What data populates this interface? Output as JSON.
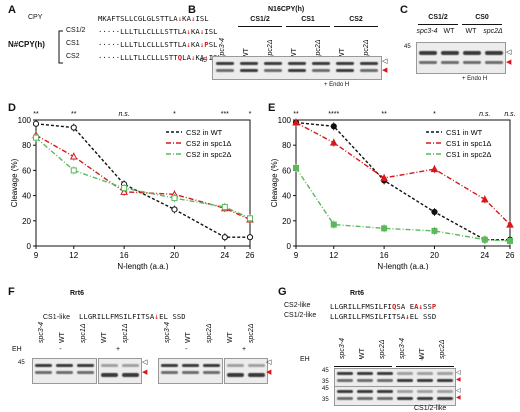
{
  "panel_a": {
    "label": "A",
    "group_label": "N#CPY(h)",
    "rows": [
      {
        "name": "CPY",
        "prefix": "MKAFTSLLCGLGLSTTLA",
        "site": "KA",
        "after": "ISL",
        "mut_pos": -1
      },
      {
        "name": "CS1/2",
        "prefix": "·····LLLTLLCLLLSTTLA",
        "site": "KA",
        "after": "ISL",
        "mut_pos": -1
      },
      {
        "name": "CS1",
        "prefix": "·····LLLTLLCLLLSTTLA",
        "site": "KA",
        "after": "PSL",
        "mut_pos": 0
      },
      {
        "name": "CS2",
        "prefix": "·····LLLTLLCLLLSTTQLA",
        "site": "KA",
        "after": "ISL",
        "mut_pos": 1
      }
    ]
  },
  "panel_b": {
    "label": "B",
    "title": "N16CPY(h)",
    "groups": [
      "CS1/2",
      "CS1",
      "CS2"
    ],
    "lanes": [
      "spc3-4",
      "WT",
      "spc2Δ",
      "WT",
      "spc2Δ",
      "WT",
      "spc2Δ"
    ],
    "marker": "45",
    "treatment": "+ Endo H"
  },
  "panel_c": {
    "label": "C",
    "groups": [
      "CS1/2",
      "CS0"
    ],
    "lanes": [
      "spc3-4",
      "WT",
      "WT",
      "spc2Δ"
    ],
    "marker": "45",
    "treatment": "+ Endo H"
  },
  "panel_d": {
    "label": "D",
    "significance": [
      "**",
      "**",
      "n.s.",
      "*",
      "***",
      "*"
    ],
    "chart_data": {
      "type": "line",
      "xlabel": "N-length (a.a.)",
      "ylabel": "Cleavage (%)",
      "x_ticks": [
        9,
        12,
        16,
        20,
        24,
        26
      ],
      "ylim": [
        0,
        100
      ],
      "y_ticks": [
        0,
        20,
        40,
        60,
        80,
        100
      ],
      "series": [
        {
          "name": "CS2 in WT",
          "color": "#111111",
          "x": [
            9,
            12,
            16,
            20,
            24,
            26
          ],
          "y": [
            97,
            94,
            49,
            29,
            7,
            7
          ]
        },
        {
          "name": "CS2 in spc1Δ",
          "color": "#d4191c",
          "x": [
            9,
            12,
            16,
            20,
            24,
            26
          ],
          "y": [
            88,
            71,
            43,
            41,
            30,
            21
          ]
        },
        {
          "name": "CS2 in spc2Δ",
          "color": "#5cb85c",
          "x": [
            9,
            12,
            16,
            20,
            24,
            26
          ],
          "y": [
            86,
            60,
            46,
            38,
            31,
            22
          ]
        }
      ]
    }
  },
  "panel_e": {
    "label": "E",
    "significance": [
      "**",
      "****",
      "**",
      "*",
      "n.s.",
      "n.s."
    ],
    "chart_data": {
      "type": "line",
      "xlabel": "N-length (a.a.)",
      "ylabel": "Cleavage (%)",
      "x_ticks": [
        9,
        12,
        16,
        20,
        24,
        26
      ],
      "ylim": [
        0,
        100
      ],
      "y_ticks": [
        0,
        20,
        40,
        60,
        80,
        100
      ],
      "series": [
        {
          "name": "CS1 in WT",
          "color": "#111111",
          "x": [
            9,
            12,
            16,
            20,
            24,
            26
          ],
          "y": [
            98,
            95,
            52,
            27,
            5,
            5
          ]
        },
        {
          "name": "CS1 in spc1Δ",
          "color": "#d4191c",
          "x": [
            9,
            12,
            16,
            20,
            24,
            26
          ],
          "y": [
            98,
            82,
            54,
            61,
            37,
            17
          ]
        },
        {
          "name": "CS1 in spc2Δ",
          "color": "#5cb85c",
          "x": [
            9,
            12,
            16,
            20,
            24,
            26
          ],
          "y": [
            62,
            17,
            14,
            12,
            5,
            4
          ]
        }
      ]
    }
  },
  "panel_f": {
    "label": "F",
    "protein": "Rrt6",
    "seq_label": "CS1-like",
    "seq_prefix": "LLGRILLFMSILFITSA",
    "seq_mut": "J",
    "seq_after": "EL SSD",
    "lanes_left": [
      "spc3-4",
      "WT",
      "spc1Δ",
      "WT",
      "spc1Δ"
    ],
    "lanes_right": [
      "spc3-4",
      "WT",
      "spc2Δ",
      "WT",
      "spc2Δ"
    ],
    "eh_label": "EH",
    "eh_minus": "-",
    "eh_plus": "+",
    "marker": "45"
  },
  "panel_g": {
    "label": "G",
    "protein": "Rrt6",
    "rows": [
      {
        "name": "CS2-like",
        "prefix": "LLGRILLFMSILFI",
        "m1": "Q",
        "mid": "SA E",
        "m2": "A",
        "tail": "SS",
        "m3": "P"
      },
      {
        "name": "CS1/2-like",
        "prefix": "LLGRILLFMSILFITSA",
        "m1": "",
        "mid": "EL SSD",
        "m2": "",
        "tail": "",
        "m3": ""
      }
    ],
    "lanes": [
      "spc3-4",
      "WT",
      "spc2Δ",
      "spc3-4",
      "WT",
      "spc2Δ"
    ],
    "eh_label": "EH",
    "eh_minus": "-",
    "eh_plus": "+",
    "marker_top": [
      "45",
      "35"
    ],
    "marker_bottom": [
      "45",
      "35"
    ],
    "blot_labels": [
      "CS2-like",
      "CS1/2-like"
    ]
  }
}
